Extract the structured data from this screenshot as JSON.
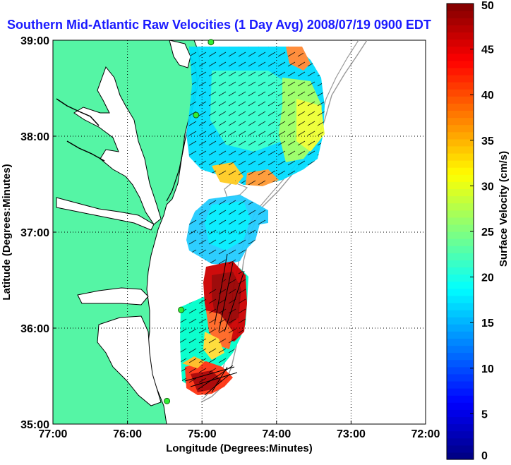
{
  "title": "Southern Mid-Atlantic Raw Velocities (1 Day Avg) 2008/07/19 0900 EDT",
  "map": {
    "xlabel": "Longitude (Degrees:Minutes)",
    "ylabel": "Latitude (Degrees:Minutes)",
    "lon_range": [
      -77,
      -72
    ],
    "lat_range": [
      35,
      39
    ],
    "x_ticks": [
      {
        "lon": -77,
        "label": "77:00"
      },
      {
        "lon": -76,
        "label": "76:00"
      },
      {
        "lon": -75,
        "label": "75:00"
      },
      {
        "lon": -74,
        "label": "74:00"
      },
      {
        "lon": -73,
        "label": "73:00"
      },
      {
        "lon": -72,
        "label": "72:00"
      }
    ],
    "y_ticks": [
      {
        "lat": 39,
        "label": "39:00"
      },
      {
        "lat": 38,
        "label": "38:00"
      },
      {
        "lat": 37,
        "label": "37:00"
      },
      {
        "lat": 36,
        "label": "36:00"
      },
      {
        "lat": 35,
        "label": "35:00"
      }
    ],
    "grid": "dotted",
    "land_color": "#55f5a5",
    "coast_color": "#000000",
    "station_color": "#33ee33",
    "stations": [
      {
        "lon": -74.88,
        "lat": 38.98
      },
      {
        "lon": -75.08,
        "lat": 38.22
      },
      {
        "lon": -75.28,
        "lat": 36.19
      },
      {
        "lon": -75.47,
        "lat": 35.24
      }
    ]
  },
  "colorbar": {
    "label": "Surface Velocity (cm/s)",
    "min": 0,
    "max": 50,
    "ticks": [
      "0",
      "5",
      "10",
      "15",
      "20",
      "25",
      "30",
      "35",
      "40",
      "45",
      "50"
    ],
    "colormap": "jet"
  }
}
